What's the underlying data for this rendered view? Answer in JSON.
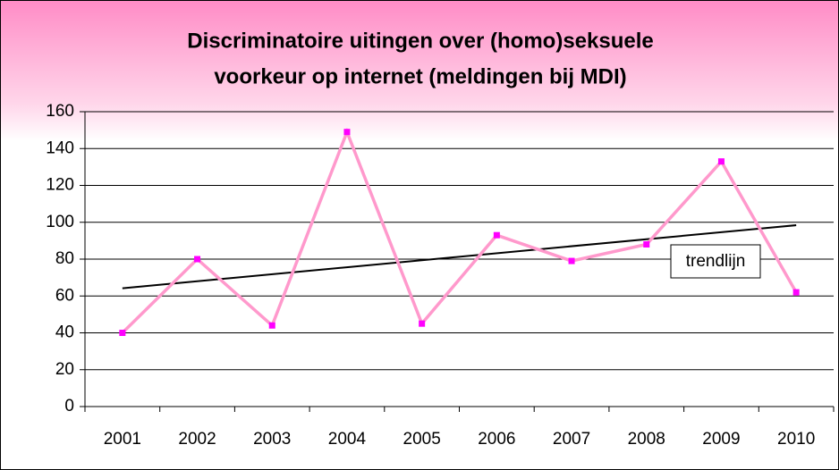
{
  "chart_data": {
    "type": "line",
    "title": [
      "Discriminatoire uitingen over (homo)seksuele",
      "voorkeur op internet (meldingen bij MDI)"
    ],
    "categories": [
      "2001",
      "2002",
      "2003",
      "2004",
      "2005",
      "2006",
      "2007",
      "2008",
      "2009",
      "2010"
    ],
    "series": [
      {
        "name": null,
        "color": "#ff99cc",
        "marker_color": "#ff00ff",
        "values": [
          40,
          80,
          44,
          149,
          45,
          93,
          79,
          88,
          133,
          62
        ]
      }
    ],
    "ylim": [
      0,
      160
    ],
    "yticks": [
      0,
      20,
      40,
      60,
      80,
      100,
      120,
      140,
      160
    ],
    "grid": true,
    "trendline": {
      "label": "trendlijn",
      "color": "#000000"
    }
  }
}
